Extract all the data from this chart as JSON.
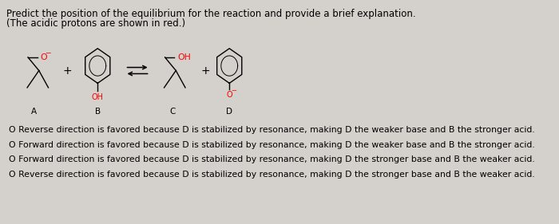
{
  "title_line1": "Predict the position of the equilibrium for the reaction and provide a brief explanation.",
  "title_line2": "(The acidic protons are shown in red.)",
  "bg_color": "#d4d0cb",
  "options": [
    "O Reverse direction is favored because D is stabilized by resonance, making D the weaker base and B the stronger acid.",
    "O Forward direction is favored because D is stabilized by resonance, making D the weaker base and B the stronger acid.",
    "O Forward direction is favored because D is stabilized by resonance, making D the stronger base and B the weaker acid.",
    "O Reverse direction is favored because D is stabilized by resonance, making D the stronger base and B the weaker acid."
  ],
  "label_A": "A",
  "label_B": "B",
  "label_C": "C",
  "label_D": "D",
  "figsize": [
    7.0,
    2.81
  ],
  "dpi": 100
}
